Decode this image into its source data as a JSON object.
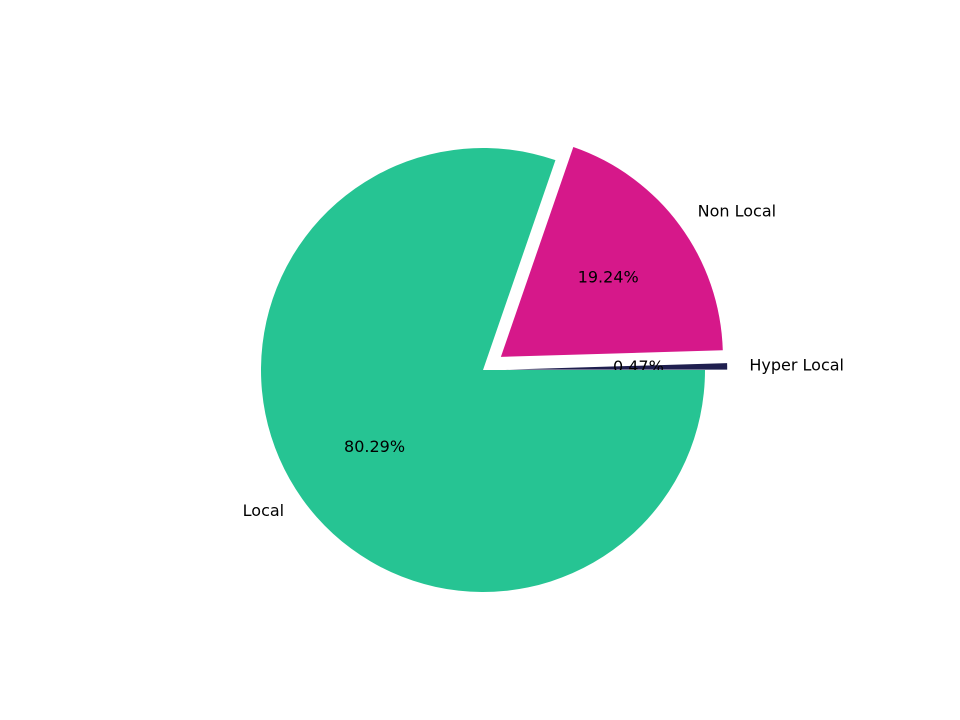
{
  "chart_data": {
    "type": "pie",
    "categories": [
      "Hyper Local",
      "Non Local",
      "Local"
    ],
    "values": [
      0.47,
      19.24,
      80.29
    ],
    "value_labels": [
      "0.47%",
      "19.24%",
      "80.29%"
    ],
    "colors": [
      "#1f1f4f",
      "#d6188a",
      "#26c493"
    ]
  }
}
